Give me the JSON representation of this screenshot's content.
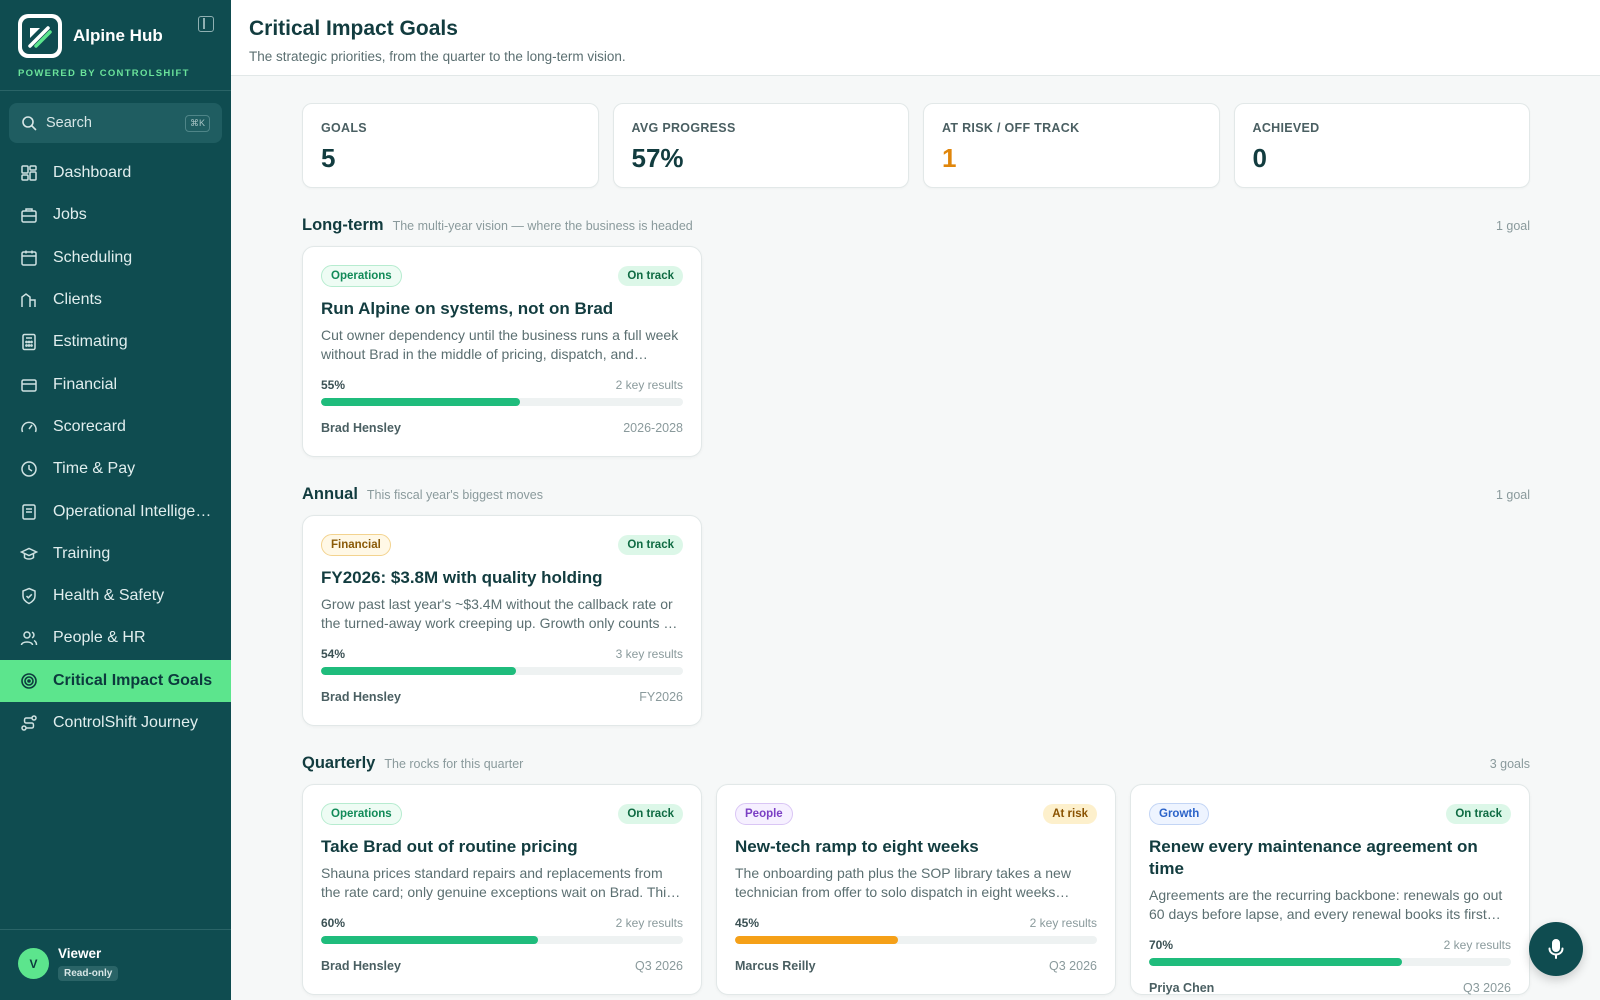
{
  "app": {
    "name": "Alpine Hub",
    "powered_by": "POWERED BY CONTROLSHIFT"
  },
  "search": {
    "label": "Search",
    "shortcut": "⌘K"
  },
  "nav": [
    {
      "label": "Dashboard",
      "icon": "dashboard-icon",
      "active": false
    },
    {
      "label": "Jobs",
      "icon": "briefcase-icon",
      "active": false
    },
    {
      "label": "Scheduling",
      "icon": "calendar-icon",
      "active": false
    },
    {
      "label": "Clients",
      "icon": "clients-icon",
      "active": false
    },
    {
      "label": "Estimating",
      "icon": "calculator-icon",
      "active": false
    },
    {
      "label": "Financial",
      "icon": "wallet-icon",
      "active": false
    },
    {
      "label": "Scorecard",
      "icon": "gauge-icon",
      "active": false
    },
    {
      "label": "Time & Pay",
      "icon": "clock-icon",
      "active": false
    },
    {
      "label": "Operational Intellige…",
      "icon": "book-icon",
      "active": false
    },
    {
      "label": "Training",
      "icon": "graduation-cap-icon",
      "active": false
    },
    {
      "label": "Health & Safety",
      "icon": "shield-icon",
      "active": false
    },
    {
      "label": "People & HR",
      "icon": "people-icon",
      "active": false
    },
    {
      "label": "Critical Impact Goals",
      "icon": "target-icon",
      "active": true
    },
    {
      "label": "ControlShift Journey",
      "icon": "route-icon",
      "active": false
    }
  ],
  "user": {
    "initial": "V",
    "name": "Viewer",
    "role": "Read-only"
  },
  "header": {
    "title": "Critical Impact Goals",
    "subtitle": "The strategic priorities, from the quarter to the long-term vision."
  },
  "stats": [
    {
      "label": "GOALS",
      "value": "5"
    },
    {
      "label": "AVG PROGRESS",
      "value": "57%"
    },
    {
      "label": "AT RISK / OFF TRACK",
      "value": "1"
    },
    {
      "label": "ACHIEVED",
      "value": "0"
    }
  ],
  "sections": [
    {
      "title": "Long-term",
      "desc": "The multi-year vision — where the business is headed",
      "count": "1 goal",
      "goals": [
        {
          "tag": "Operations",
          "status": "On track",
          "title": "Run Alpine on systems, not on Brad",
          "desc": "Cut owner dependency until the business runs a full week without Brad in the middle of pricing, dispatch, and…",
          "progress_label": "55%",
          "progress": 0.55,
          "key_results": "2 key results",
          "owner": "Brad Hensley",
          "period": "2026-2028"
        }
      ]
    },
    {
      "title": "Annual",
      "desc": "This fiscal year's biggest moves",
      "count": "1 goal",
      "goals": [
        {
          "tag": "Financial",
          "status": "On track",
          "title": "FY2026: $3.8M with quality holding",
          "desc": "Grow past last year's ~$3.4M without the callback rate or the turned-away work creeping up. Growth only counts …",
          "progress_label": "54%",
          "progress": 0.54,
          "key_results": "3 key results",
          "owner": "Brad Hensley",
          "period": "FY2026"
        }
      ]
    },
    {
      "title": "Quarterly",
      "desc": "The rocks for this quarter",
      "count": "3 goals",
      "goals": [
        {
          "tag": "Operations",
          "status": "On track",
          "title": "Take Brad out of routine pricing",
          "desc": "Shauna prices standard repairs and replacements from the rate card; only genuine exceptions wait on Brad. Thi…",
          "progress_label": "60%",
          "progress": 0.6,
          "key_results": "2 key results",
          "owner": "Brad Hensley",
          "period": "Q3 2026"
        },
        {
          "tag": "People",
          "status": "At risk",
          "title": "New-tech ramp to eight weeks",
          "desc": "The onboarding path plus the SOP library takes a new technician from offer to solo dispatch in eight weeks…",
          "progress_label": "45%",
          "progress": 0.45,
          "key_results": "2 key results",
          "owner": "Marcus Reilly",
          "period": "Q3 2026"
        },
        {
          "tag": "Growth",
          "status": "On track",
          "title": "Renew every maintenance agreement on time",
          "desc": "Agreements are the recurring backbone: renewals go out 60 days before lapse, and every renewal books its first…",
          "progress_label": "70%",
          "progress": 0.7,
          "key_results": "2 key results",
          "owner": "Priya Chen",
          "period": "Q3 2026"
        }
      ]
    }
  ],
  "colors": {
    "sidebar": "#0f4c50",
    "accent": "#5ce58d",
    "progress": "#1fbc7c",
    "risk": "#f5a018"
  }
}
